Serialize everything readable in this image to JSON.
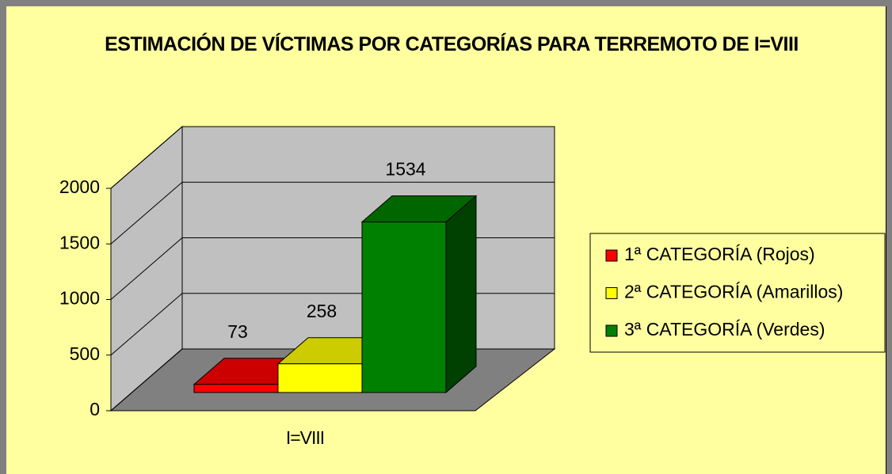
{
  "chart_data": {
    "type": "bar3d",
    "title": "ESTIMACIÓN DE VÍCTIMAS POR CATEGORÍAS PARA TERREMOTO DE I=VIII",
    "categories": [
      "I=VIII"
    ],
    "series": [
      {
        "name": "1ª CATEGORÍA (Rojos)",
        "color": "#ff0000",
        "values": [
          73
        ]
      },
      {
        "name": "2ª CATEGORÍA (Amarillos)",
        "color": "#ffff00",
        "values": [
          258
        ]
      },
      {
        "name": "3ª CATEGORÍA (Verdes)",
        "color": "#008000",
        "values": [
          1534
        ]
      }
    ],
    "ylim": [
      0,
      2000
    ],
    "yticks": [
      0,
      500,
      1000,
      1500,
      2000
    ],
    "grid": true,
    "legend": "right"
  }
}
